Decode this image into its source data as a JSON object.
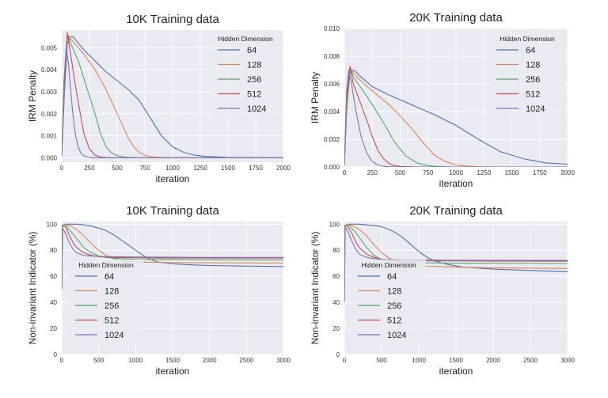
{
  "colors": {
    "plot_bg": "#eaeaf2",
    "grid": "#ffffff",
    "h64": "#4c72b0",
    "h128": "#dd8452",
    "h256": "#55a868",
    "h512": "#c44e52",
    "h1024": "#8172b3"
  },
  "legend_title": "Hidden Dimension",
  "chart_data": [
    {
      "type": "line",
      "title": "10K Training data",
      "xlabel": "iteration",
      "ylabel": "IRM Penalty",
      "xlim": [
        0,
        2000
      ],
      "ylim": [
        -0.0002,
        0.0058
      ],
      "xticks": [
        0,
        250,
        500,
        750,
        1000,
        1250,
        1500,
        1750,
        2000
      ],
      "xtick_labels": [
        "0",
        "250",
        "500",
        "750",
        "1000",
        "1250",
        "1500",
        "1750",
        "2000"
      ],
      "yticks": [
        0.0,
        0.001,
        0.002,
        0.003,
        0.004,
        0.005
      ],
      "ytick_labels": [
        "0.000",
        "0.001",
        "0.002",
        "0.003",
        "0.004",
        "0.005"
      ],
      "legend_loc": "upper-right",
      "series": [
        {
          "name": "64",
          "x": [
            0,
            20,
            50,
            80,
            100,
            150,
            200,
            300,
            400,
            500,
            600,
            700,
            800,
            900,
            1000,
            1100,
            1200,
            1300,
            1500,
            1750,
            2000
          ],
          "y": [
            0.0001,
            0.0025,
            0.0052,
            0.0055,
            0.0055,
            0.0052,
            0.0049,
            0.0044,
            0.0039,
            0.0035,
            0.0031,
            0.0026,
            0.0018,
            0.001,
            0.0005,
            0.00025,
            0.00012,
            6e-05,
            2e-05,
            1e-05,
            0.0
          ]
        },
        {
          "name": "128",
          "x": [
            0,
            20,
            50,
            80,
            150,
            200,
            300,
            400,
            500,
            600,
            650,
            700,
            750,
            800,
            900,
            1000,
            1200,
            1500,
            2000
          ],
          "y": [
            0.0001,
            0.0028,
            0.0056,
            0.0054,
            0.005,
            0.0047,
            0.004,
            0.0031,
            0.002,
            0.0009,
            0.0005,
            0.00025,
            0.00012,
            5e-05,
            1e-05,
            0.0,
            0.0,
            0.0,
            0.0
          ]
        },
        {
          "name": "256",
          "x": [
            0,
            20,
            50,
            80,
            150,
            200,
            300,
            350,
            400,
            450,
            500,
            550,
            600,
            700,
            800,
            1000,
            1500,
            2000
          ],
          "y": [
            0.0001,
            0.003,
            0.0056,
            0.0052,
            0.0044,
            0.0036,
            0.002,
            0.0011,
            0.0005,
            0.00022,
            0.0001,
            4e-05,
            2e-05,
            0.0,
            0.0,
            0.0,
            0.0,
            0.0
          ]
        },
        {
          "name": "512",
          "x": [
            0,
            20,
            50,
            80,
            120,
            150,
            200,
            250,
            300,
            350,
            400,
            500,
            750,
            1000,
            2000
          ],
          "y": [
            0.0001,
            0.0032,
            0.0057,
            0.0047,
            0.0034,
            0.0025,
            0.0011,
            0.0004,
            0.00012,
            4e-05,
            1e-05,
            0.0,
            0.0,
            0.0,
            0.0
          ]
        },
        {
          "name": "1024",
          "x": [
            0,
            20,
            40,
            60,
            80,
            100,
            125,
            150,
            175,
            200,
            250,
            300,
            500,
            1000,
            2000
          ],
          "y": [
            0.0001,
            0.0035,
            0.005,
            0.0043,
            0.0031,
            0.002,
            0.001,
            0.00045,
            0.0002,
            8e-05,
            2e-05,
            0.0,
            0.0,
            0.0,
            0.0
          ]
        }
      ]
    },
    {
      "type": "line",
      "title": "20K Training data",
      "xlabel": "iteration",
      "ylabel": "IRM Penalty",
      "xlim": [
        0,
        2000
      ],
      "ylim": [
        0.0,
        0.01
      ],
      "xticks": [
        0,
        250,
        500,
        750,
        1000,
        1250,
        1500,
        1750,
        2000
      ],
      "xtick_labels": [
        "0",
        "250",
        "500",
        "750",
        "1000",
        "1250",
        "1500",
        "1750",
        "2000"
      ],
      "yticks": [
        0.0,
        0.002,
        0.004,
        0.006,
        0.008,
        0.01
      ],
      "ytick_labels": [
        "0.000",
        "0.002",
        "0.004",
        "0.006",
        "0.008",
        "0.010"
      ],
      "legend_loc": "upper-right",
      "series": [
        {
          "name": "64",
          "x": [
            0,
            20,
            50,
            80,
            100,
            150,
            250,
            400,
            600,
            800,
            1000,
            1200,
            1400,
            1600,
            1800,
            2000
          ],
          "y": [
            0.0001,
            0.004,
            0.0068,
            0.007,
            0.0069,
            0.0065,
            0.0058,
            0.0052,
            0.0045,
            0.0038,
            0.003,
            0.002,
            0.0011,
            0.0006,
            0.0003,
            0.0002
          ]
        },
        {
          "name": "128",
          "x": [
            0,
            20,
            50,
            80,
            150,
            250,
            400,
            500,
            600,
            700,
            800,
            900,
            1000,
            1100,
            1200,
            1400,
            1600,
            2000
          ],
          "y": [
            0.0001,
            0.004,
            0.0072,
            0.0068,
            0.0062,
            0.0055,
            0.0045,
            0.0037,
            0.0028,
            0.0018,
            0.0009,
            0.0004,
            0.00015,
            5e-05,
            2e-05,
            0.0,
            0.0,
            0.0
          ]
        },
        {
          "name": "256",
          "x": [
            0,
            20,
            50,
            80,
            150,
            250,
            350,
            450,
            550,
            650,
            750,
            800,
            900,
            1000,
            2000
          ],
          "y": [
            0.0001,
            0.0045,
            0.0072,
            0.0065,
            0.0057,
            0.0045,
            0.0032,
            0.0018,
            0.0008,
            0.0003,
            0.0001,
            5e-05,
            1e-05,
            0.0,
            0.0
          ]
        },
        {
          "name": "512",
          "x": [
            0,
            20,
            50,
            80,
            150,
            200,
            250,
            300,
            350,
            400,
            450,
            500,
            600,
            800,
            2000
          ],
          "y": [
            0.0001,
            0.005,
            0.0073,
            0.006,
            0.0045,
            0.0034,
            0.0022,
            0.0012,
            0.0006,
            0.00025,
            0.0001,
            4e-05,
            1e-05,
            0.0,
            0.0
          ]
        },
        {
          "name": "1024",
          "x": [
            0,
            20,
            40,
            60,
            80,
            100,
            150,
            200,
            250,
            300,
            350,
            400,
            500,
            2000
          ],
          "y": [
            0.0001,
            0.0055,
            0.007,
            0.0062,
            0.0052,
            0.0042,
            0.0022,
            0.001,
            0.0004,
            0.00015,
            5e-05,
            2e-05,
            0.0,
            0.0
          ]
        }
      ]
    },
    {
      "type": "line",
      "title": "10K Training data",
      "xlabel": "iteration",
      "ylabel": "Non-invariant Indicator (%)",
      "xlim": [
        0,
        3000
      ],
      "ylim": [
        0,
        102
      ],
      "xticks": [
        0,
        500,
        1000,
        1500,
        2000,
        2500,
        3000
      ],
      "xtick_labels": [
        "0",
        "500",
        "1000",
        "1500",
        "2000",
        "2500",
        "3000"
      ],
      "yticks": [
        0,
        20,
        40,
        60,
        80,
        100
      ],
      "ytick_labels": [
        "0",
        "20",
        "40",
        "60",
        "80",
        "100"
      ],
      "legend_loc": "lower-left",
      "series": [
        {
          "name": "64",
          "x": [
            0,
            10,
            50,
            100,
            200,
            300,
            400,
            500,
            600,
            700,
            800,
            900,
            1000,
            1100,
            1200,
            1300,
            1500,
            1750,
            2000,
            2500,
            3000
          ],
          "y": [
            50,
            99,
            100,
            100,
            100,
            99.5,
            98.5,
            97,
            95,
            92,
            88,
            84,
            80,
            76,
            73,
            71,
            69.5,
            68.8,
            68.3,
            67.8,
            67.5
          ]
        },
        {
          "name": "128",
          "x": [
            0,
            10,
            50,
            100,
            200,
            300,
            400,
            500,
            600,
            700,
            800,
            1000,
            1500,
            2000,
            3000
          ],
          "y": [
            50,
            99,
            100,
            99,
            96,
            91,
            85,
            80,
            76,
            73.5,
            72,
            71,
            70.5,
            70.3,
            70.2
          ]
        },
        {
          "name": "256",
          "x": [
            0,
            10,
            50,
            100,
            200,
            300,
            400,
            500,
            600,
            800,
            1000,
            1500,
            2000,
            3000
          ],
          "y": [
            50,
            99,
            99.5,
            96,
            89,
            82,
            78,
            75.5,
            74.5,
            73.5,
            73,
            72.8,
            72.6,
            72.5
          ]
        },
        {
          "name": "512",
          "x": [
            0,
            10,
            50,
            100,
            150,
            200,
            300,
            400,
            500,
            700,
            1000,
            1500,
            2000,
            3000
          ],
          "y": [
            50,
            99,
            98,
            92,
            86,
            82,
            78,
            76,
            75,
            74.5,
            74.2,
            74,
            74,
            74
          ]
        },
        {
          "name": "1024",
          "x": [
            0,
            10,
            50,
            100,
            150,
            200,
            300,
            400,
            500,
            700,
            1000,
            1500,
            2000,
            3000
          ],
          "y": [
            50,
            97,
            93,
            86,
            81,
            78,
            76,
            75.5,
            75.2,
            75,
            74.8,
            74.6,
            74.5,
            74.5
          ]
        }
      ]
    },
    {
      "type": "line",
      "title": "20K Training data",
      "xlabel": "iteration",
      "ylabel": "Non-invariant Indicator (%)",
      "xlim": [
        0,
        3000
      ],
      "ylim": [
        0,
        102
      ],
      "xticks": [
        0,
        500,
        1000,
        1500,
        2000,
        2500,
        3000
      ],
      "xtick_labels": [
        "0",
        "500",
        "1000",
        "1500",
        "2000",
        "2500",
        "3000"
      ],
      "yticks": [
        0,
        20,
        40,
        60,
        80,
        100
      ],
      "ytick_labels": [
        "0",
        "20",
        "40",
        "60",
        "80",
        "100"
      ],
      "legend_loc": "lower-left",
      "series": [
        {
          "name": "64",
          "x": [
            0,
            10,
            50,
            100,
            200,
            300,
            400,
            500,
            600,
            700,
            800,
            900,
            1000,
            1100,
            1200,
            1400,
            1600,
            2000,
            2500,
            3000
          ],
          "y": [
            40,
            99,
            100,
            100,
            100,
            99.5,
            99,
            98,
            96,
            93,
            89,
            84,
            79,
            75,
            72,
            69,
            67,
            65.5,
            64.5,
            63.5
          ]
        },
        {
          "name": "128",
          "x": [
            0,
            10,
            50,
            100,
            200,
            300,
            400,
            500,
            600,
            700,
            800,
            1000,
            1500,
            2000,
            3000
          ],
          "y": [
            40,
            99,
            100,
            99,
            96,
            91,
            84,
            78,
            74,
            71,
            69.5,
            68,
            67,
            66.5,
            66
          ]
        },
        {
          "name": "256",
          "x": [
            0,
            10,
            50,
            100,
            200,
            300,
            400,
            500,
            600,
            800,
            1000,
            1500,
            2000,
            3000
          ],
          "y": [
            40,
            99,
            99.5,
            97,
            90,
            82,
            76,
            73,
            72,
            71,
            70.5,
            70,
            70,
            69.8
          ]
        },
        {
          "name": "512",
          "x": [
            0,
            10,
            50,
            100,
            150,
            200,
            300,
            400,
            500,
            700,
            1000,
            1500,
            2000,
            3000
          ],
          "y": [
            40,
            99,
            98,
            93,
            87,
            82,
            77,
            74.5,
            73,
            72.3,
            72,
            71.8,
            71.7,
            71.6
          ]
        },
        {
          "name": "1024",
          "x": [
            0,
            10,
            50,
            100,
            150,
            200,
            300,
            400,
            500,
            700,
            1000,
            1500,
            2000,
            3000
          ],
          "y": [
            40,
            98,
            94,
            87,
            81,
            77,
            74.5,
            73.5,
            73,
            72.7,
            72.5,
            72.3,
            72.2,
            72.2
          ]
        }
      ]
    }
  ]
}
